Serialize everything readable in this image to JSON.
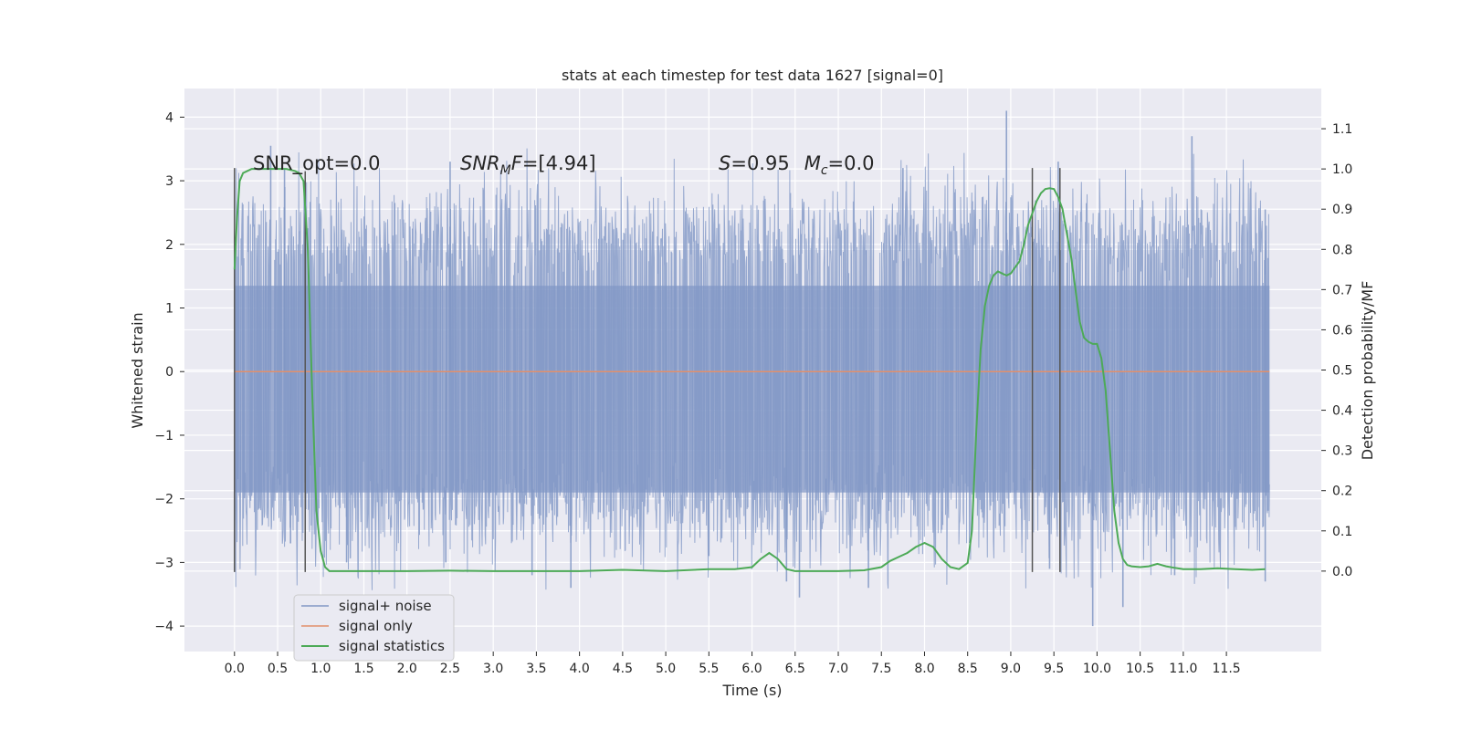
{
  "chart_data": {
    "type": "line",
    "title": "stats at each timestep for test data 1627 [signal=0]",
    "xlabel": "Time (s)",
    "ylabel": "Whitened strain",
    "y2label": "Detection probability/MF",
    "xlim": [
      -0.58,
      12.6
    ],
    "ylim": [
      -4.4,
      4.45
    ],
    "y2lim": [
      -0.2,
      1.2
    ],
    "xticks": [
      0.0,
      0.5,
      1.0,
      1.5,
      2.0,
      2.5,
      3.0,
      3.5,
      4.0,
      4.5,
      5.0,
      5.5,
      6.0,
      6.5,
      7.0,
      7.5,
      8.0,
      8.5,
      9.0,
      9.5,
      10.0,
      10.5,
      11.0,
      11.5
    ],
    "xtick_labels": [
      "0.0",
      "0.5",
      "1.0",
      "1.5",
      "2.0",
      "2.5",
      "3.0",
      "3.5",
      "4.0",
      "4.5",
      "5.0",
      "5.5",
      "6.0",
      "6.5",
      "7.0",
      "7.5",
      "8.0",
      "8.5",
      "9.0",
      "9.5",
      "10.0",
      "10.5",
      "11.0",
      "11.5"
    ],
    "yticks": [
      4,
      3,
      2,
      1,
      0,
      -1,
      -2,
      -3,
      -4
    ],
    "ytick_labels": [
      "4",
      "3",
      "2",
      "1",
      "0",
      "−1",
      "−2",
      "−3",
      "−4"
    ],
    "y2ticks": [
      1.1,
      1.0,
      0.9,
      0.8,
      0.7,
      0.6,
      0.5,
      0.4,
      0.3,
      0.2,
      0.1,
      0.0
    ],
    "y2tick_labels": [
      "1.1",
      "1.0",
      "0.9",
      "0.8",
      "0.7",
      "0.6",
      "0.5",
      "0.4",
      "0.3",
      "0.2",
      "0.1",
      "0.0"
    ],
    "grid": true,
    "legend_position": "lower-left",
    "series": [
      {
        "name": "signal+ noise",
        "color": "#8197c5",
        "axis": "left",
        "x_range": [
          0.0,
          12.0
        ],
        "noise_envelope": [
          -4.0,
          4.1
        ],
        "spikes": [
          {
            "x": 0.42,
            "y": 3.55
          },
          {
            "x": 0.58,
            "y": 3.2
          },
          {
            "x": 0.65,
            "y": -2.7
          },
          {
            "x": 1.3,
            "y": -3.0
          },
          {
            "x": 2.5,
            "y": 3.3
          },
          {
            "x": 2.45,
            "y": -3.0
          },
          {
            "x": 3.45,
            "y": -3.2
          },
          {
            "x": 3.9,
            "y": -3.4
          },
          {
            "x": 5.5,
            "y": -2.9
          },
          {
            "x": 6.4,
            "y": -3.3
          },
          {
            "x": 6.55,
            "y": -3.55
          },
          {
            "x": 7.35,
            "y": -3.4
          },
          {
            "x": 7.75,
            "y": 3.2
          },
          {
            "x": 8.95,
            "y": 4.1
          },
          {
            "x": 9.45,
            "y": -3.1
          },
          {
            "x": 9.55,
            "y": 3.3
          },
          {
            "x": 9.95,
            "y": -4.0
          },
          {
            "x": 10.3,
            "y": -3.7
          },
          {
            "x": 10.9,
            "y": -3.2
          },
          {
            "x": 11.1,
            "y": 3.7
          },
          {
            "x": 11.95,
            "y": -3.3
          },
          {
            "x": 11.95,
            "y": 2.55
          }
        ]
      },
      {
        "name": "signal only",
        "color": "#e28f6b",
        "axis": "left",
        "x": [
          0.0,
          12.0
        ],
        "y": [
          0.0,
          0.0
        ]
      },
      {
        "name": "signal statistics",
        "color": "#4daa57",
        "axis": "right",
        "x": [
          0.0,
          0.03,
          0.06,
          0.1,
          0.15,
          0.2,
          0.3,
          0.4,
          0.5,
          0.6,
          0.7,
          0.75,
          0.8,
          0.85,
          0.9,
          0.95,
          1.0,
          1.05,
          1.1,
          1.2,
          1.5,
          2.0,
          2.5,
          3.0,
          3.5,
          4.0,
          4.5,
          5.0,
          5.5,
          5.8,
          6.0,
          6.1,
          6.2,
          6.3,
          6.4,
          6.5,
          7.0,
          7.3,
          7.5,
          7.6,
          7.7,
          7.8,
          7.9,
          8.0,
          8.1,
          8.2,
          8.3,
          8.4,
          8.5,
          8.55,
          8.6,
          8.65,
          8.7,
          8.75,
          8.8,
          8.85,
          8.9,
          8.95,
          9.0,
          9.1,
          9.15,
          9.2,
          9.25,
          9.3,
          9.35,
          9.4,
          9.45,
          9.5,
          9.55,
          9.6,
          9.65,
          9.7,
          9.75,
          9.8,
          9.85,
          9.9,
          9.95,
          10.0,
          10.05,
          10.1,
          10.15,
          10.2,
          10.25,
          10.3,
          10.35,
          10.4,
          10.5,
          10.6,
          10.7,
          10.8,
          10.9,
          11.0,
          11.2,
          11.4,
          11.6,
          11.8,
          11.95
        ],
        "y": [
          0.75,
          0.88,
          0.97,
          0.99,
          0.995,
          1.0,
          1.0,
          1.0,
          1.0,
          1.0,
          0.995,
          0.99,
          0.97,
          0.8,
          0.45,
          0.15,
          0.05,
          0.01,
          0.0,
          0.0,
          0.0,
          0.0,
          0.001,
          0.0,
          0.0,
          0.0,
          0.003,
          0.0,
          0.005,
          0.005,
          0.01,
          0.03,
          0.045,
          0.03,
          0.005,
          0.0,
          0.0,
          0.002,
          0.01,
          0.025,
          0.035,
          0.045,
          0.06,
          0.07,
          0.06,
          0.03,
          0.01,
          0.005,
          0.02,
          0.1,
          0.35,
          0.55,
          0.66,
          0.71,
          0.735,
          0.745,
          0.74,
          0.735,
          0.74,
          0.77,
          0.81,
          0.86,
          0.89,
          0.92,
          0.94,
          0.95,
          0.952,
          0.95,
          0.93,
          0.9,
          0.84,
          0.78,
          0.7,
          0.62,
          0.58,
          0.57,
          0.565,
          0.565,
          0.53,
          0.45,
          0.3,
          0.15,
          0.07,
          0.03,
          0.015,
          0.012,
          0.01,
          0.012,
          0.018,
          0.012,
          0.008,
          0.005,
          0.005,
          0.007,
          0.005,
          0.003,
          0.005
        ]
      }
    ],
    "vertical_markers": [
      {
        "x": 0.0,
        "y_range": [
          -3.15,
          3.2
        ]
      },
      {
        "x": 0.82,
        "y_range": [
          -3.15,
          3.15
        ]
      },
      {
        "x": 9.25,
        "y_range": [
          -3.15,
          3.2
        ]
      },
      {
        "x": 9.57,
        "y_range": [
          -3.15,
          3.2
        ]
      }
    ],
    "annotations": {
      "snr_opt": "SNR_opt=0.0",
      "snr_mf_main": "SNR",
      "snr_mf_sub": "M",
      "snr_mf_tail": "F",
      "snr_mf_value": "=[4.94]",
      "s_label": "S",
      "s_value": "=0.95",
      "mc_label": "M",
      "mc_sub": "c",
      "mc_value": "=0.0"
    }
  }
}
